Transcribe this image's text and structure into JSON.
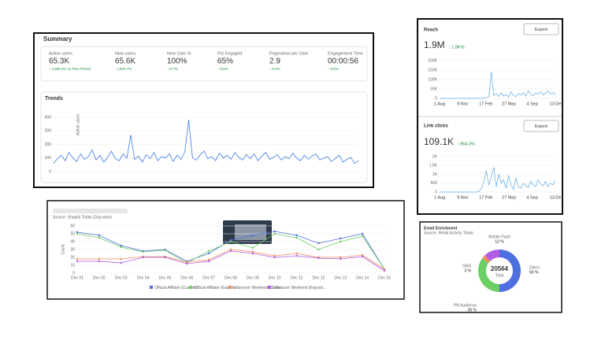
{
  "summary": {
    "title": "Summary",
    "metrics": [
      {
        "label": "Active users",
        "value": "65.3K",
        "change": "↑ 1,590.9% vs Prev Period"
      },
      {
        "label": "New users",
        "value": "65.6K",
        "change": "↑ 1604.7%"
      },
      {
        "label": "New User %",
        "value": "100%",
        "change": "↑ 0.7%"
      },
      {
        "label": "Pct Engaged",
        "value": "65%",
        "change": "↑ 5.5%"
      },
      {
        "label": "Pageviews per User",
        "value": "2.9",
        "change": "↑ 9.3%"
      },
      {
        "label": "Engagement Time",
        "value": "00:00:56",
        "change": "↑ 9.8%"
      }
    ]
  },
  "trends": {
    "type": "line",
    "title": "Trends",
    "ylabel": "Active users",
    "color": "#3b78e7",
    "ylim": [
      0,
      400
    ],
    "yticks": [
      0,
      100,
      200,
      300,
      400
    ],
    "values": [
      60,
      95,
      120,
      80,
      140,
      100,
      75,
      130,
      90,
      110,
      160,
      85,
      120,
      70,
      105,
      150,
      95,
      80,
      130,
      100,
      270,
      90,
      115,
      70,
      125,
      95,
      140,
      80,
      110,
      100,
      130,
      75,
      120,
      90,
      145,
      380,
      100,
      85,
      125,
      150,
      95,
      110,
      80,
      135,
      100,
      120,
      90,
      140,
      105,
      85,
      125,
      95,
      130,
      80,
      115,
      140,
      90,
      105,
      125,
      85,
      110,
      95,
      135,
      100,
      80,
      120,
      90,
      115,
      130,
      85,
      100,
      110,
      75,
      95,
      120,
      70,
      90,
      105,
      60,
      80
    ]
  },
  "reach": {
    "type": "line",
    "title": "Reach",
    "value": "1.9M",
    "change": "↑ 1.8K%",
    "button": "Export",
    "color": "#5aa9e6",
    "ylim": [
      0,
      200000
    ],
    "yticks": [
      {
        "value": 0,
        "label": "0"
      },
      {
        "value": 50000,
        "label": "50K"
      },
      {
        "value": 100000,
        "label": "100K"
      },
      {
        "value": 150000,
        "label": "150K"
      },
      {
        "value": 200000,
        "label": "200K"
      }
    ],
    "xtick_labels": [
      "1 Aug",
      "9 Nov",
      "17 Feb",
      "27 May",
      "4 Sep",
      "13 De"
    ],
    "values": [
      0,
      0,
      0,
      0,
      0,
      0,
      0,
      0,
      0,
      0,
      0,
      0,
      0,
      0,
      0,
      0,
      0,
      0,
      2000,
      5000,
      8000,
      140000,
      15000,
      25000,
      10000,
      30000,
      12000,
      20000,
      8000,
      35000,
      15000,
      10000,
      25000,
      18000,
      30000,
      12000,
      40000,
      20000,
      15000,
      30000,
      22000,
      35000,
      18000,
      28000,
      40000,
      25000,
      30000,
      20000
    ]
  },
  "clicks": {
    "type": "line",
    "title": "Link clicks",
    "value": "109.1K",
    "change": "↑ 854.3%",
    "button": "Export",
    "color": "#5aa9e6",
    "ylim": [
      0,
      2000
    ],
    "yticks": [
      {
        "value": 0,
        "label": "0"
      },
      {
        "value": 500,
        "label": "500"
      },
      {
        "value": 1000,
        "label": "1K"
      },
      {
        "value": 1500,
        "label": "1.5K"
      },
      {
        "value": 2000,
        "label": "2K"
      }
    ],
    "xtick_labels": [
      "1 Aug",
      "9 Nov",
      "17 Feb",
      "27 May",
      "4 Sep",
      "13 De"
    ],
    "values": [
      0,
      0,
      0,
      0,
      0,
      0,
      0,
      0,
      0,
      0,
      0,
      0,
      0,
      0,
      0,
      0,
      50,
      200,
      600,
      1200,
      400,
      900,
      1400,
      300,
      1000,
      500,
      700,
      200,
      950,
      400,
      150,
      800,
      300,
      200,
      500,
      350,
      250,
      600,
      400,
      300,
      700,
      450,
      350,
      600,
      300,
      500,
      400,
      650
    ]
  },
  "campaign": {
    "type": "line",
    "subtitle": "Source: Shopify Totals (Day-wise)",
    "ylabel": "Count",
    "ylim": [
      0,
      60
    ],
    "yticks": [
      0,
      10,
      20,
      30,
      40,
      50,
      60
    ],
    "categories": [
      "Dec 01",
      "Dec 02",
      "Dec 03",
      "Dec 04",
      "Dec 05",
      "Dec 06",
      "Dec 07",
      "Dec 08",
      "Dec 09",
      "Dec 10",
      "Dec 11",
      "Dec 12",
      "Dec 13",
      "Dec 14",
      "Dec 15"
    ],
    "series": [
      {
        "name": "Official Affiliate (Custom...",
        "color": "#4d6fe0",
        "values": [
          52,
          48,
          35,
          28,
          30,
          15,
          25,
          42,
          48,
          53,
          48,
          38,
          44,
          50,
          5
        ]
      },
      {
        "name": "Official Affiliate (Exports...",
        "color": "#6bcf63",
        "values": [
          50,
          45,
          33,
          27,
          29,
          13,
          28,
          40,
          32,
          50,
          45,
          30,
          40,
          47,
          5
        ]
      },
      {
        "name": "Influencer Weekend (Custo...",
        "color": "#f08a5d",
        "values": [
          18,
          18,
          18,
          21,
          21,
          14,
          17,
          30,
          27,
          22,
          25,
          20,
          20,
          23,
          5
        ]
      },
      {
        "name": "Influencer Weekend (Exports...",
        "color": "#b05ce6",
        "values": [
          15,
          15,
          13,
          20,
          20,
          12,
          15,
          28,
          25,
          20,
          22,
          19,
          18,
          21,
          3
        ]
      }
    ]
  },
  "donut": {
    "type": "pie",
    "title": "Email Enrichment",
    "subtitle": "Source: Retail Activity Totals",
    "total": "20564",
    "total_label": "Total",
    "segments": [
      {
        "name": "Direct",
        "value": 50,
        "value_label": "50 %",
        "color": "#4d6fe0"
      },
      {
        "name": "PN Audience",
        "value": 35,
        "value_label": "35 %",
        "color": "#6bcf63"
      },
      {
        "name": "SMS",
        "value": 3,
        "value_label": "3 %",
        "color": "#f08a5d"
      },
      {
        "name": "Mobile Push",
        "value": 12,
        "value_label": "12 %",
        "color": "#b05ce6"
      }
    ]
  }
}
